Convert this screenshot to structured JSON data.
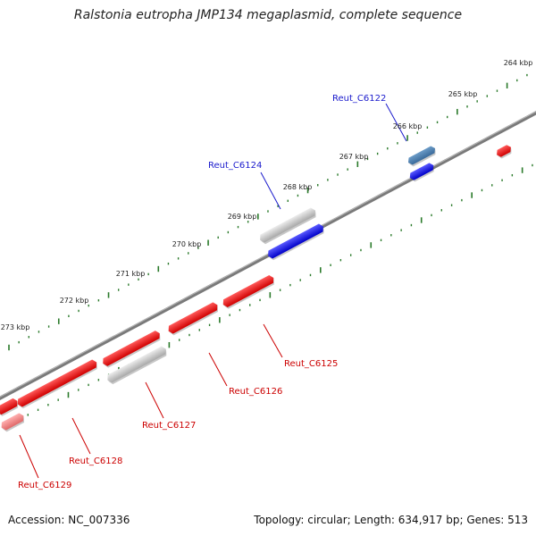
{
  "title": "Ralstonia eutropha JMP134 megaplasmid, complete sequence",
  "footer": {
    "accession": "Accession: NC_007336",
    "info": "Topology: circular; Length: 634,917 bp; Genes: 513"
  },
  "colors": {
    "backbone": "#7a7a7a",
    "tick": "#2a7a2a",
    "forward_gene": "#0000e0",
    "reverse_gene": "#ee0000",
    "rna_like": "#c8c8c8",
    "forward_label": "#1a1acc",
    "reverse_label": "#cc0000"
  },
  "scale_labels": [
    {
      "text": "264 kbp"
    },
    {
      "text": "265 kbp"
    },
    {
      "text": "266 kbp"
    },
    {
      "text": "267 kbp"
    },
    {
      "text": "268 kbp"
    },
    {
      "text": "269 kbp"
    },
    {
      "text": "270 kbp"
    },
    {
      "text": "271 kbp"
    },
    {
      "text": "272 kbp"
    },
    {
      "text": "273 kbp"
    }
  ],
  "gene_labels": [
    {
      "text": "Reut_C6122",
      "strand": "forward"
    },
    {
      "text": "Reut_C6124",
      "strand": "forward"
    },
    {
      "text": "Reut_C6125",
      "strand": "reverse"
    },
    {
      "text": "Reut_C6126",
      "strand": "reverse"
    },
    {
      "text": "Reut_C6127",
      "strand": "reverse"
    },
    {
      "text": "Reut_C6128",
      "strand": "reverse"
    },
    {
      "text": "Reut_C6129",
      "strand": "reverse"
    }
  ]
}
